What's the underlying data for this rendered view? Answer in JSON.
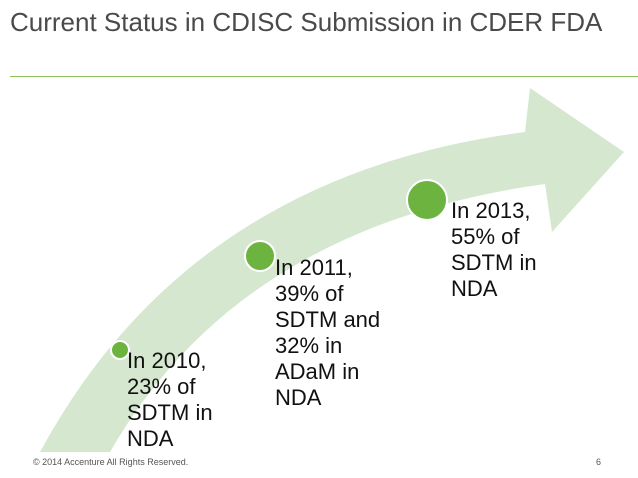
{
  "slide": {
    "title": "Current Status in  CDISC Submission in CDER FDA",
    "milestones": [
      {
        "text": "In 2010,\n23% of\nSDTM in\nNDA"
      },
      {
        "text": "In 2011,\n39% of\nSDTM and\n32% in\nADaM in\nNDA"
      },
      {
        "text": "In 2013,\n55% of\nSDTM in\nNDA"
      }
    ],
    "footer": {
      "copyright": "© 2014 Accenture  All Rights Reserved.",
      "page_number": "6"
    }
  },
  "colors": {
    "arrow_fill": "#d5e8cf",
    "dot_fill": "#6db33f",
    "title_rule": "#8cbf5a"
  }
}
